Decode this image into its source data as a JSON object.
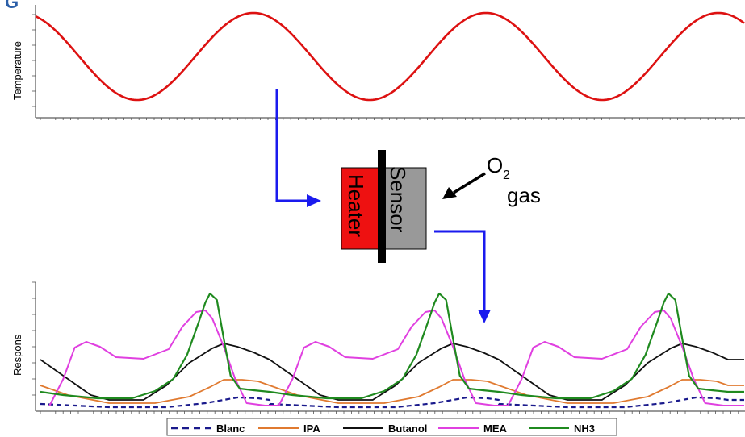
{
  "top_chart": {
    "ylabel": "Temperature",
    "color": "#dd1111",
    "cycles": 4
  },
  "sensor_block": {
    "heater_label": "Heater",
    "sensor_label": "Sensor",
    "heater_color": "#ee1111",
    "sensor_color": "#999999",
    "o2_label": "O",
    "o2_subscript": "2",
    "gas_label": "gas"
  },
  "arrow_color": "#1a1aee",
  "chart_data": {
    "type": "line",
    "ylabel": "Respons",
    "xlabel": "",
    "cycles": 3,
    "series": [
      {
        "name": "Blanc",
        "color": "#1a1a8c",
        "style": "dashed"
      },
      {
        "name": "IPA",
        "color": "#e07a30",
        "style": "solid"
      },
      {
        "name": "Butanol",
        "color": "#111111",
        "style": "solid"
      },
      {
        "name": "MEA",
        "color": "#e040e0",
        "style": "solid"
      },
      {
        "name": "NH3",
        "color": "#1f8a1f",
        "style": "solid"
      }
    ]
  }
}
